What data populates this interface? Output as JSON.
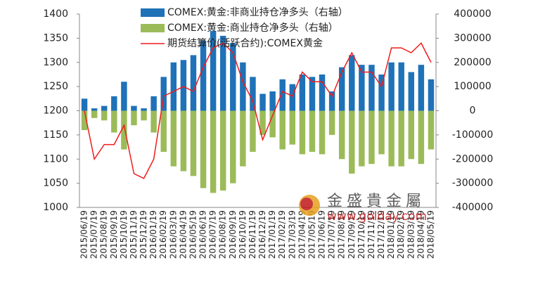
{
  "chart_data": {
    "type": "combo",
    "legend": "top",
    "categories": [
      "2015/06/19",
      "2015/07/19",
      "2015/08/19",
      "2015/09/19",
      "2015/10/19",
      "2015/11/19",
      "2015/12/19",
      "2016/01/19",
      "2016/02/19",
      "2016/03/19",
      "2016/04/19",
      "2016/05/19",
      "2016/06/19",
      "2016/07/19",
      "2016/08/19",
      "2016/09/19",
      "2016/10/19",
      "2016/11/19",
      "2016/12/19",
      "2017/01/19",
      "2017/02/19",
      "2017/03/19",
      "2017/04/19",
      "2017/05/19",
      "2017/06/19",
      "2017/07/19",
      "2017/08/19",
      "2017/09/19",
      "2017/10/19",
      "2017/11/19",
      "2017/12/19",
      "2018/01/19",
      "2018/02/19",
      "2018/03/19",
      "2018/04/19",
      "2018/05/19"
    ],
    "series": [
      {
        "name": "COMEX:黄金:非商业持仓净多头（右轴）",
        "type": "bar",
        "axis": "y2",
        "color": "#1f72b8",
        "values": [
          50000,
          10000,
          20000,
          60000,
          120000,
          20000,
          10000,
          60000,
          140000,
          200000,
          210000,
          230000,
          290000,
          330000,
          310000,
          280000,
          200000,
          140000,
          70000,
          80000,
          130000,
          110000,
          150000,
          140000,
          150000,
          80000,
          180000,
          230000,
          190000,
          190000,
          150000,
          200000,
          200000,
          160000,
          190000,
          130000
        ]
      },
      {
        "name": "COMEX:黄金:商业持仓净多头（右轴）",
        "type": "bar",
        "axis": "y2",
        "color": "#9bbb59",
        "values": [
          -80000,
          -30000,
          -40000,
          -90000,
          -160000,
          -60000,
          -40000,
          -90000,
          -170000,
          -230000,
          -250000,
          -270000,
          -320000,
          -340000,
          -330000,
          -300000,
          -230000,
          -170000,
          -100000,
          -110000,
          -160000,
          -140000,
          -180000,
          -170000,
          -180000,
          -100000,
          -200000,
          -260000,
          -230000,
          -220000,
          -180000,
          -230000,
          -230000,
          -200000,
          -220000,
          -160000
        ]
      },
      {
        "name": "期货结算价(活跃合约):COMEX黄金",
        "type": "line",
        "axis": "y",
        "color": "#ee1c1c",
        "values": [
          1200,
          1100,
          1130,
          1130,
          1170,
          1070,
          1060,
          1100,
          1230,
          1240,
          1250,
          1240,
          1290,
          1330,
          1340,
          1320,
          1260,
          1220,
          1140,
          1190,
          1240,
          1230,
          1280,
          1260,
          1260,
          1230,
          1280,
          1320,
          1280,
          1280,
          1250,
          1330,
          1330,
          1320,
          1340,
          1300
        ]
      }
    ],
    "ylim": [
      1000,
      1400
    ],
    "yticks": [
      1000,
      1050,
      1100,
      1150,
      1200,
      1250,
      1300,
      1350,
      1400
    ],
    "y2lim": [
      -400000,
      400000
    ],
    "y2ticks": [
      -400000,
      -300000,
      -200000,
      -100000,
      0,
      100000,
      200000,
      300000,
      400000
    ],
    "watermark": [
      "金盛貴金屬",
      "www.golday.com"
    ]
  }
}
